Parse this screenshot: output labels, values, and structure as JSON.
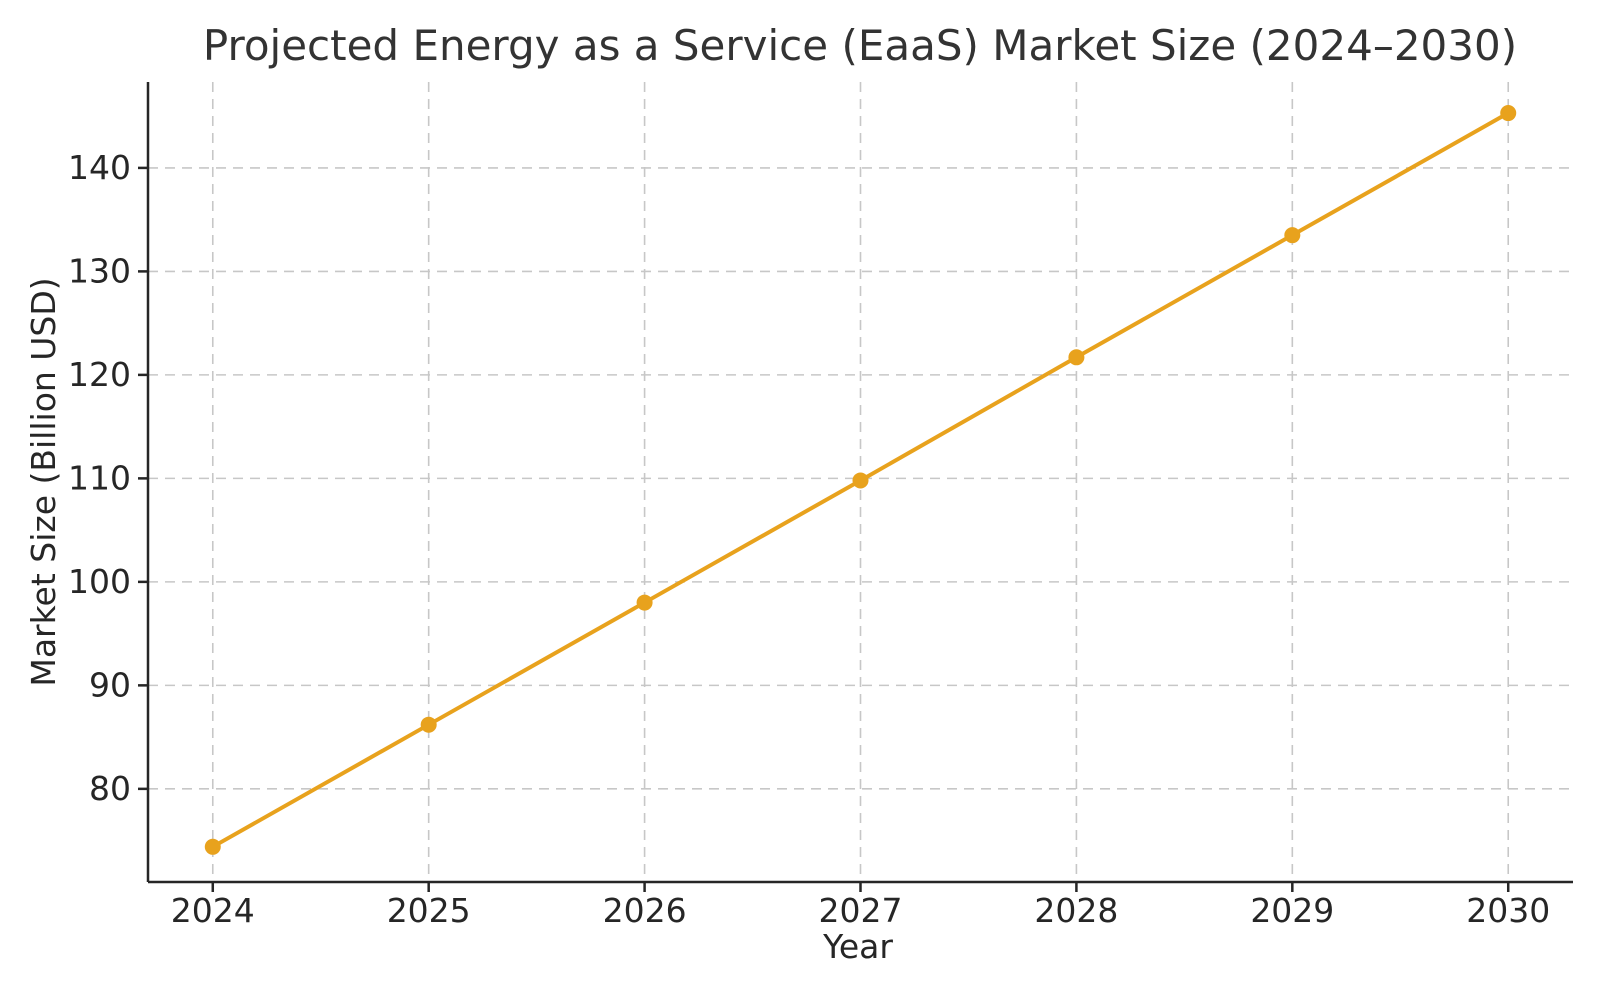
{
  "chart_data": {
    "type": "line",
    "title": "Projected Energy as a Service (EaaS) Market Size (2024–2030)",
    "xlabel": "Year",
    "ylabel": "Market Size (Billion USD)",
    "x": [
      2024,
      2025,
      2026,
      2027,
      2028,
      2029,
      2030
    ],
    "series": [
      {
        "name": "EaaS Market Size (Billion USD)",
        "values": [
          74.4,
          86.2,
          98.0,
          109.8,
          121.7,
          133.5,
          145.3
        ]
      }
    ],
    "xticks": [
      2024,
      2025,
      2026,
      2027,
      2028,
      2029,
      2030
    ],
    "yticks": [
      80,
      90,
      100,
      110,
      120,
      130,
      140
    ],
    "xlim": [
      2023.7,
      2030.3
    ],
    "ylim": [
      71.0,
      148.3
    ],
    "grid": true,
    "grid_style": "dashed",
    "legend": false,
    "colors": {
      "line": "#E8A21D",
      "marker": "#E8A21D",
      "grid": "#c7c7c7",
      "spine": "#262626",
      "text": "#262626",
      "title": "#333333"
    },
    "marker": "circle"
  }
}
